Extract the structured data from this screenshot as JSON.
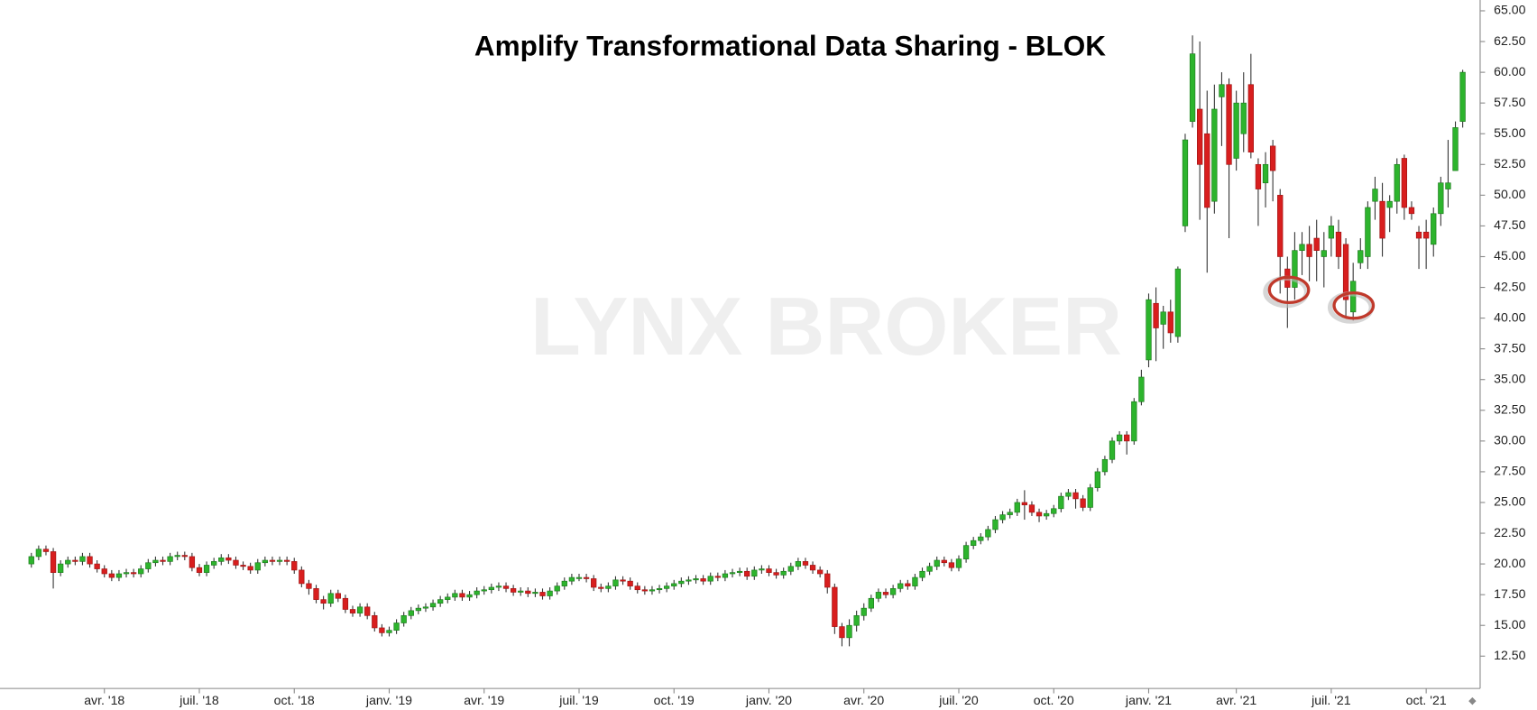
{
  "chart_data": {
    "type": "candlestick",
    "title": "Amplify Transformational Data Sharing - BLOK",
    "watermark": "LYNX BROKER",
    "up_color": "#2db42d",
    "down_color": "#d81e1e",
    "grid": false,
    "ylim": [
      9.87,
      65.88
    ],
    "yticks": [
      {
        "value": 12.5,
        "label": "12.50"
      },
      {
        "value": 15,
        "label": "15.00"
      },
      {
        "value": 17.5,
        "label": "17.50"
      },
      {
        "value": 20,
        "label": "20.00"
      },
      {
        "value": 22.5,
        "label": "22.50"
      },
      {
        "value": 25,
        "label": "25.00"
      },
      {
        "value": 27.5,
        "label": "27.50"
      },
      {
        "value": 30,
        "label": "30.00"
      },
      {
        "value": 32.5,
        "label": "32.50"
      },
      {
        "value": 35,
        "label": "35.00"
      },
      {
        "value": 37.5,
        "label": "37.50"
      },
      {
        "value": 40,
        "label": "40.00"
      },
      {
        "value": 42.5,
        "label": "42.50"
      },
      {
        "value": 45,
        "label": "45.00"
      },
      {
        "value": 47.5,
        "label": "47.50"
      },
      {
        "value": 50,
        "label": "50.00"
      },
      {
        "value": 52.5,
        "label": "52.50"
      },
      {
        "value": 55,
        "label": "55.00"
      },
      {
        "value": 57.5,
        "label": "57.50"
      },
      {
        "value": 60,
        "label": "60.00"
      },
      {
        "value": 62.5,
        "label": "62.50"
      },
      {
        "value": 65,
        "label": "65.00"
      }
    ],
    "categories": [
      null,
      null,
      null,
      null,
      null,
      null,
      null,
      null,
      null,
      null,
      "avr. '18",
      null,
      null,
      null,
      null,
      null,
      null,
      null,
      null,
      null,
      null,
      null,
      null,
      "juil. '18",
      null,
      null,
      null,
      null,
      null,
      null,
      null,
      null,
      null,
      null,
      null,
      null,
      "oct. '18",
      null,
      null,
      null,
      null,
      null,
      null,
      null,
      null,
      null,
      null,
      null,
      null,
      "janv. '19",
      null,
      null,
      null,
      null,
      null,
      null,
      null,
      null,
      null,
      null,
      null,
      null,
      "avr. '19",
      null,
      null,
      null,
      null,
      null,
      null,
      null,
      null,
      null,
      null,
      null,
      null,
      "juil. '19",
      null,
      null,
      null,
      null,
      null,
      null,
      null,
      null,
      null,
      null,
      null,
      null,
      "oct. '19",
      null,
      null,
      null,
      null,
      null,
      null,
      null,
      null,
      null,
      null,
      null,
      null,
      "janv. '20",
      null,
      null,
      null,
      null,
      null,
      null,
      null,
      null,
      null,
      null,
      null,
      null,
      "avr. '20",
      null,
      null,
      null,
      null,
      null,
      null,
      null,
      null,
      null,
      null,
      null,
      null,
      "juil. '20",
      null,
      null,
      null,
      null,
      null,
      null,
      null,
      null,
      null,
      null,
      null,
      null,
      "oct. '20",
      null,
      null,
      null,
      null,
      null,
      null,
      null,
      null,
      null,
      null,
      null,
      null,
      "janv. '21",
      null,
      null,
      null,
      null,
      null,
      null,
      null,
      null,
      null,
      null,
      null,
      "avr. '21",
      null,
      null,
      null,
      null,
      null,
      null,
      null,
      null,
      null,
      null,
      null,
      null,
      "juil. '21",
      null,
      null,
      null,
      null,
      null,
      null,
      null,
      null,
      null,
      null,
      null,
      null,
      "oct. '21",
      null,
      null,
      null,
      null,
      null
    ],
    "open": [
      20.0,
      20.6,
      21.2,
      21.0,
      19.3,
      20.0,
      20.3,
      20.2,
      20.6,
      20.0,
      19.6,
      19.2,
      18.9,
      19.2,
      19.3,
      19.2,
      19.6,
      20.1,
      20.3,
      20.2,
      20.6,
      20.7,
      20.6,
      19.7,
      19.3,
      19.9,
      20.2,
      20.5,
      20.3,
      19.9,
      19.8,
      19.5,
      20.1,
      20.3,
      20.2,
      20.3,
      20.2,
      19.5,
      18.4,
      18.0,
      17.1,
      16.8,
      17.6,
      17.2,
      16.3,
      16.0,
      16.5,
      15.8,
      14.8,
      14.4,
      14.6,
      15.2,
      15.8,
      16.2,
      16.4,
      16.5,
      16.8,
      17.1,
      17.3,
      17.6,
      17.3,
      17.5,
      17.8,
      17.9,
      18.1,
      18.2,
      18.0,
      17.7,
      17.8,
      17.6,
      17.7,
      17.4,
      17.8,
      18.2,
      18.6,
      18.9,
      18.9,
      18.8,
      18.1,
      18.0,
      18.2,
      18.7,
      18.6,
      18.2,
      17.9,
      17.8,
      17.9,
      18.0,
      18.2,
      18.4,
      18.6,
      18.7,
      18.8,
      18.6,
      19.0,
      18.9,
      19.2,
      19.3,
      19.4,
      19.0,
      19.5,
      19.6,
      19.3,
      19.1,
      19.4,
      19.8,
      20.2,
      19.9,
      19.5,
      19.2,
      18.1,
      14.9,
      14.0,
      15.0,
      15.8,
      16.4,
      17.2,
      17.7,
      17.5,
      18.0,
      18.4,
      18.2,
      18.9,
      19.4,
      19.8,
      20.3,
      20.1,
      19.7,
      20.4,
      21.5,
      21.9,
      22.2,
      22.8,
      23.6,
      24.0,
      24.2,
      25.0,
      24.8,
      24.2,
      23.9,
      24.1,
      24.5,
      25.5,
      25.8,
      25.3,
      24.6,
      26.2,
      27.5,
      28.5,
      30.0,
      30.5,
      30.0,
      33.2,
      36.6,
      41.2,
      39.5,
      40.5,
      38.5,
      47.5,
      56.0,
      57.0,
      55.0,
      49.5,
      58.0,
      59.0,
      53.0,
      55.0,
      59.0,
      52.5,
      51.0,
      54.0,
      50.0,
      44.0,
      42.5,
      45.5,
      46.0,
      46.5,
      45.0,
      46.5,
      47.0,
      46.0,
      40.5,
      44.5,
      45.0,
      49.5,
      49.5,
      49.0,
      49.5,
      53.0,
      49.0,
      47.0,
      47.0,
      46.0,
      48.5,
      50.5,
      52.0,
      56.0
    ],
    "high": [
      20.9,
      21.5,
      21.5,
      21.3,
      20.3,
      20.6,
      20.6,
      20.9,
      20.9,
      20.3,
      19.9,
      19.5,
      19.5,
      19.6,
      19.6,
      19.9,
      20.4,
      20.6,
      20.6,
      20.9,
      21.0,
      21.0,
      20.9,
      20.0,
      20.2,
      20.5,
      20.8,
      20.8,
      20.6,
      20.2,
      20.1,
      20.4,
      20.6,
      20.6,
      20.6,
      20.6,
      20.5,
      19.8,
      18.7,
      18.3,
      17.4,
      17.9,
      17.9,
      17.5,
      16.6,
      16.8,
      16.8,
      16.1,
      15.1,
      14.9,
      15.5,
      16.1,
      16.5,
      16.7,
      16.8,
      17.1,
      17.4,
      17.6,
      17.9,
      17.9,
      17.8,
      18.1,
      18.2,
      18.4,
      18.5,
      18.5,
      18.3,
      18.1,
      18.1,
      18.0,
      18.0,
      18.1,
      18.5,
      18.9,
      19.2,
      19.2,
      19.2,
      19.1,
      18.4,
      18.5,
      19.0,
      19.0,
      18.9,
      18.5,
      18.2,
      18.2,
      18.3,
      18.5,
      18.7,
      18.9,
      19.0,
      19.1,
      19.1,
      19.3,
      19.3,
      19.5,
      19.6,
      19.7,
      19.7,
      19.8,
      19.9,
      19.9,
      19.6,
      19.7,
      20.1,
      20.5,
      20.5,
      20.2,
      19.8,
      19.5,
      18.4,
      15.2,
      15.5,
      16.2,
      16.8,
      17.5,
      18.0,
      18.0,
      18.3,
      18.7,
      18.7,
      19.2,
      19.7,
      20.1,
      20.6,
      20.6,
      20.4,
      20.7,
      21.8,
      22.2,
      22.5,
      23.1,
      23.9,
      24.3,
      24.5,
      25.3,
      26.0,
      25.1,
      24.5,
      24.4,
      24.8,
      25.8,
      26.1,
      26.1,
      25.6,
      26.5,
      27.8,
      28.8,
      30.3,
      30.8,
      30.8,
      33.5,
      35.8,
      42.0,
      42.5,
      41.0,
      41.5,
      44.2,
      55.0,
      63.0,
      62.5,
      58.5,
      59.0,
      60.0,
      59.5,
      58.5,
      60.0,
      61.5,
      53.0,
      53.5,
      54.5,
      50.5,
      45.0,
      47.0,
      47.0,
      47.5,
      48.0,
      47.0,
      48.3,
      48.0,
      46.5,
      44.5,
      46.5,
      49.5,
      51.5,
      51.0,
      50.0,
      53.0,
      53.3,
      49.5,
      47.5,
      48.0,
      49.0,
      51.5,
      54.5,
      56.0,
      60.2
    ],
    "low": [
      19.7,
      20.3,
      20.7,
      18.0,
      19.0,
      19.7,
      19.9,
      19.9,
      19.7,
      19.3,
      18.9,
      18.6,
      18.6,
      18.9,
      18.9,
      18.9,
      19.3,
      19.8,
      19.9,
      19.9,
      20.3,
      20.3,
      19.4,
      19.0,
      19.0,
      19.6,
      19.9,
      20.0,
      19.6,
      19.5,
      19.2,
      19.2,
      19.8,
      19.9,
      19.9,
      19.9,
      19.2,
      18.1,
      17.5,
      16.8,
      16.3,
      16.5,
      16.9,
      16.0,
      15.7,
      15.7,
      15.5,
      14.5,
      14.1,
      14.1,
      14.3,
      14.9,
      15.5,
      15.9,
      16.1,
      16.2,
      16.5,
      16.8,
      17.0,
      17.0,
      17.0,
      17.2,
      17.5,
      17.6,
      17.8,
      17.7,
      17.4,
      17.4,
      17.3,
      17.3,
      17.1,
      17.1,
      17.5,
      17.9,
      18.3,
      18.6,
      18.5,
      17.8,
      17.7,
      17.7,
      17.9,
      18.3,
      17.9,
      17.6,
      17.5,
      17.5,
      17.6,
      17.7,
      17.9,
      18.1,
      18.3,
      18.4,
      18.3,
      18.3,
      18.6,
      18.6,
      18.9,
      19.0,
      18.7,
      18.7,
      19.2,
      19.0,
      18.8,
      18.8,
      19.1,
      19.5,
      19.6,
      19.2,
      18.9,
      17.6,
      14.3,
      13.3,
      13.3,
      14.5,
      15.4,
      16.1,
      16.9,
      17.2,
      17.2,
      17.7,
      17.9,
      17.9,
      18.6,
      19.1,
      19.5,
      19.8,
      19.4,
      19.4,
      20.1,
      21.2,
      21.6,
      21.9,
      22.5,
      23.3,
      23.7,
      23.9,
      23.6,
      23.9,
      23.4,
      23.6,
      23.8,
      24.2,
      25.2,
      24.5,
      24.3,
      24.3,
      25.9,
      27.2,
      28.2,
      29.7,
      28.9,
      29.7,
      32.9,
      36.0,
      36.5,
      37.5,
      38.0,
      38.0,
      47.0,
      55.5,
      48.0,
      43.7,
      48.5,
      54.0,
      46.5,
      52.0,
      53.5,
      53.0,
      47.5,
      49.0,
      49.5,
      42.0,
      39.2,
      41.5,
      43.5,
      43.0,
      43.0,
      42.5,
      45.0,
      44.0,
      40.0,
      39.8,
      44.0,
      44.0,
      48.0,
      45.0,
      47.0,
      48.5,
      48.0,
      48.0,
      44.0,
      44.0,
      45.0,
      47.5,
      49.0,
      52.0,
      55.5
    ],
    "close": [
      20.6,
      21.2,
      21.0,
      19.3,
      20.0,
      20.3,
      20.2,
      20.6,
      20.0,
      19.6,
      19.2,
      18.9,
      19.2,
      19.3,
      19.2,
      19.6,
      20.1,
      20.3,
      20.2,
      20.6,
      20.7,
      20.6,
      19.7,
      19.3,
      19.9,
      20.2,
      20.5,
      20.3,
      19.9,
      19.8,
      19.5,
      20.1,
      20.3,
      20.2,
      20.3,
      20.2,
      19.5,
      18.4,
      18.0,
      17.1,
      16.8,
      17.6,
      17.2,
      16.3,
      16.0,
      16.5,
      15.8,
      14.8,
      14.4,
      14.6,
      15.2,
      15.8,
      16.2,
      16.4,
      16.5,
      16.8,
      17.1,
      17.3,
      17.6,
      17.3,
      17.5,
      17.8,
      17.9,
      18.1,
      18.2,
      18.0,
      17.7,
      17.8,
      17.6,
      17.7,
      17.4,
      17.8,
      18.2,
      18.6,
      18.9,
      18.9,
      18.8,
      18.1,
      18.0,
      18.2,
      18.7,
      18.6,
      18.2,
      17.9,
      17.8,
      17.9,
      18.0,
      18.2,
      18.4,
      18.6,
      18.7,
      18.8,
      18.6,
      19.0,
      18.9,
      19.2,
      19.3,
      19.4,
      19.0,
      19.5,
      19.6,
      19.3,
      19.1,
      19.4,
      19.8,
      20.2,
      19.9,
      19.5,
      19.2,
      18.1,
      14.9,
      14.0,
      15.0,
      15.8,
      16.4,
      17.2,
      17.7,
      17.5,
      18.0,
      18.4,
      18.2,
      18.9,
      19.4,
      19.8,
      20.3,
      20.1,
      19.7,
      20.4,
      21.5,
      21.9,
      22.2,
      22.8,
      23.6,
      24.0,
      24.2,
      25.0,
      24.8,
      24.2,
      23.9,
      24.1,
      24.5,
      25.5,
      25.8,
      25.3,
      24.6,
      26.2,
      27.5,
      28.5,
      30.0,
      30.5,
      30.0,
      33.2,
      35.2,
      41.5,
      39.2,
      40.5,
      38.8,
      44.0,
      54.5,
      61.5,
      52.5,
      49.0,
      57.0,
      59.0,
      52.5,
      57.5,
      57.5,
      53.5,
      50.5,
      52.5,
      52.0,
      45.0,
      42.5,
      45.5,
      46.0,
      45.0,
      45.5,
      45.5,
      47.5,
      45.0,
      41.5,
      43.0,
      45.5,
      49.0,
      50.5,
      46.5,
      49.5,
      52.5,
      49.0,
      48.5,
      46.5,
      46.5,
      48.5,
      51.0,
      51.0,
      55.5,
      60.0
    ]
  }
}
